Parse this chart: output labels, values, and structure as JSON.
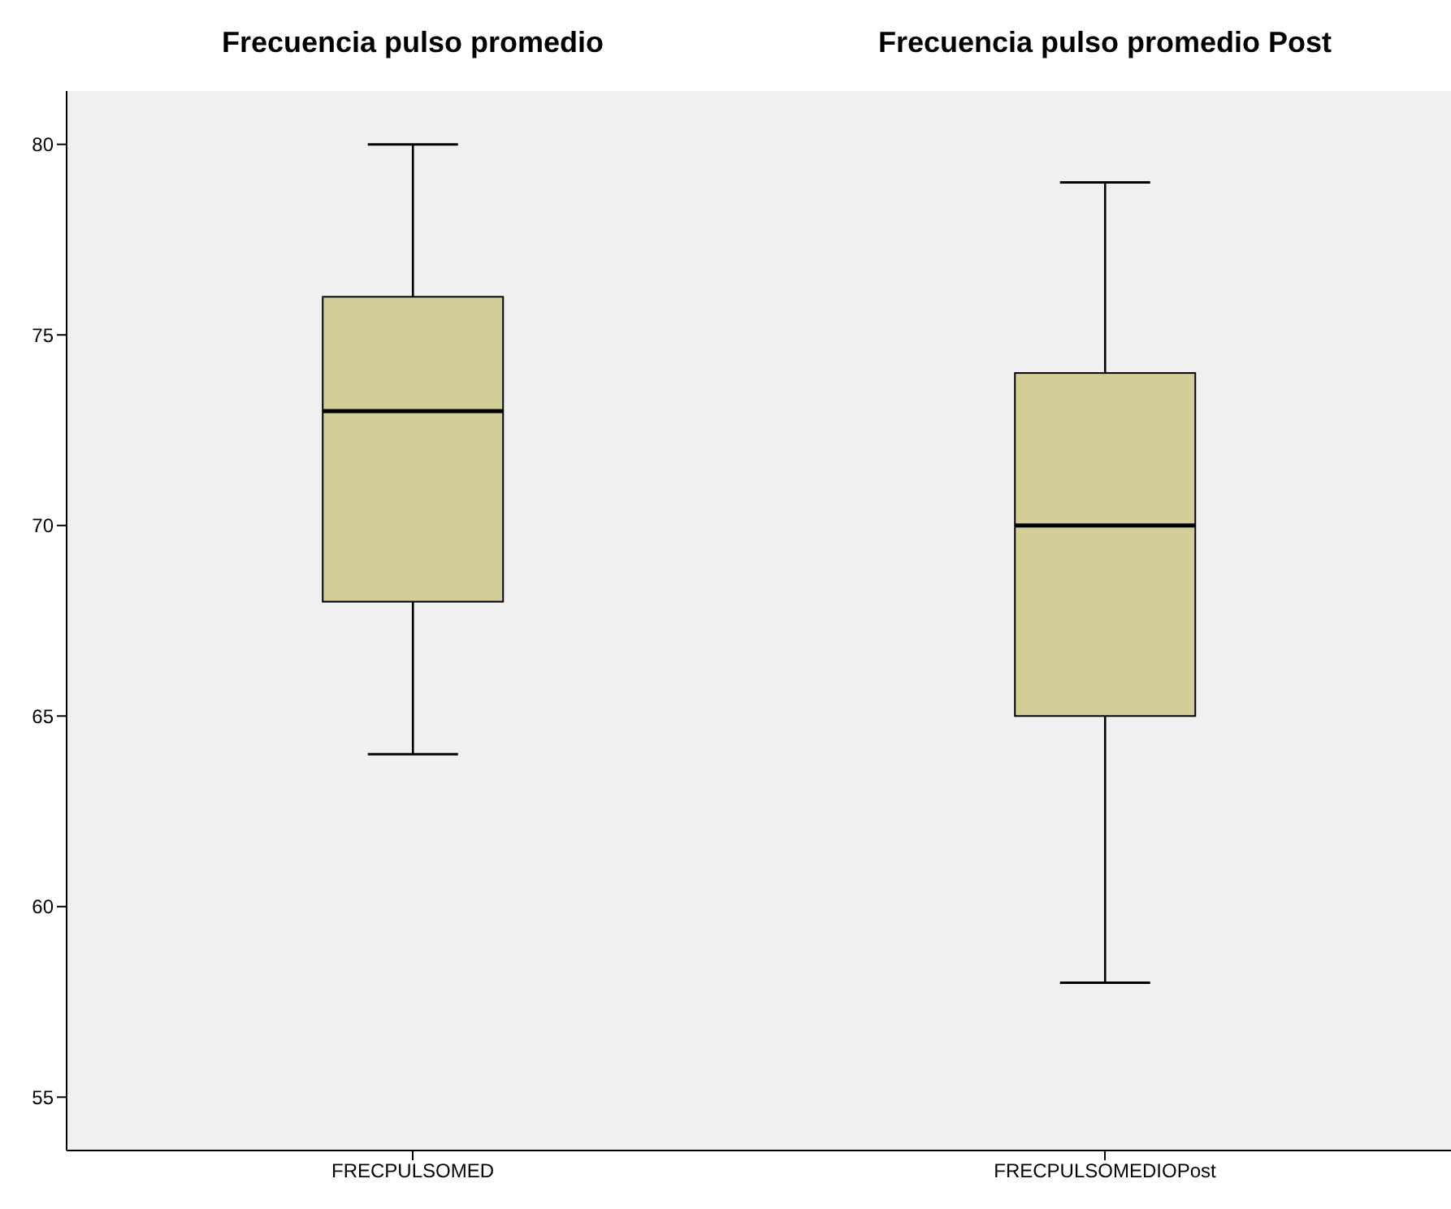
{
  "chart_data": {
    "type": "box",
    "categories": [
      "FRECPULSOMED",
      "FRECPULSOMEDIOPost"
    ],
    "boxes": [
      {
        "low": 64,
        "q1": 68,
        "median": 73,
        "q3": 76,
        "high": 80
      },
      {
        "low": 58,
        "q1": 65,
        "median": 70,
        "q3": 74,
        "high": 79
      }
    ],
    "color": "#d3ce98",
    "ylim": [
      53.6,
      81.4
    ],
    "yticks": [
      55,
      60,
      65,
      70,
      75,
      80
    ],
    "annotations": [
      "Frecuencia pulso promedio",
      "Frecuencia pulso promedio Post"
    ],
    "grid": false
  }
}
